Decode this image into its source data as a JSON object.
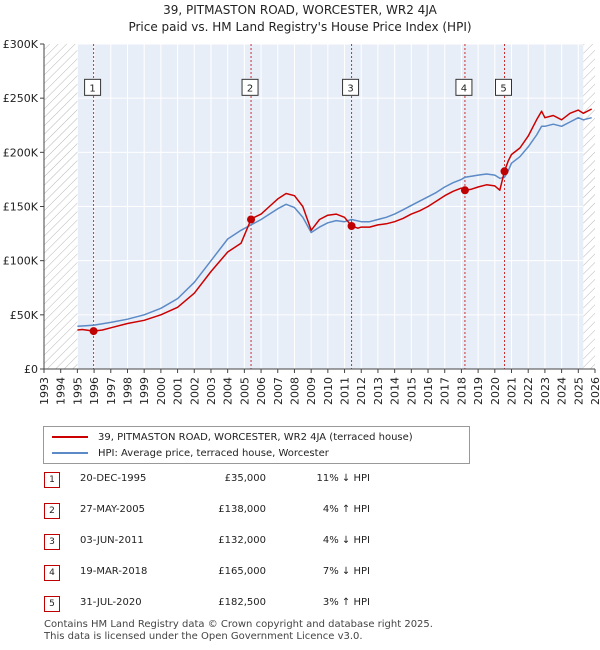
{
  "title_line1": "39, PITMASTON ROAD, WORCESTER, WR2 4JA",
  "title_line2": "Price paid vs. HM Land Registry's House Price Index (HPI)",
  "colors": {
    "property": "#cc0000",
    "hpi": "#5b8ac6",
    "hatch": "#bbbbbb",
    "marker": "#c00000"
  },
  "chart_data": {
    "type": "line",
    "xlim": [
      1993,
      2026
    ],
    "ylim": [
      0,
      300000
    ],
    "y_ticks": [
      0,
      50000,
      100000,
      150000,
      200000,
      250000,
      300000
    ],
    "y_tick_labels": [
      "£0",
      "£50K",
      "£100K",
      "£150K",
      "£200K",
      "£250K",
      "£300K"
    ],
    "x_ticks": [
      1993,
      1994,
      1995,
      1996,
      1997,
      1998,
      1999,
      2000,
      2001,
      2002,
      2003,
      2004,
      2005,
      2006,
      2007,
      2008,
      2009,
      2010,
      2011,
      2012,
      2013,
      2014,
      2015,
      2016,
      2017,
      2018,
      2019,
      2020,
      2021,
      2022,
      2023,
      2024,
      2025,
      2026
    ],
    "hatch_ranges": [
      [
        1993,
        1995.0
      ],
      [
        2025.3,
        2026
      ]
    ],
    "series": [
      {
        "name": "39, PITMASTON ROAD, WORCESTER, WR2 4JA (terraced house)",
        "color": "#cc0000",
        "points": [
          [
            1995.0,
            36000
          ],
          [
            1995.3,
            36500
          ],
          [
            1995.97,
            35000
          ],
          [
            1996.5,
            36000
          ],
          [
            1997,
            38000
          ],
          [
            1998,
            42000
          ],
          [
            1999,
            45000
          ],
          [
            2000,
            50000
          ],
          [
            2001,
            57000
          ],
          [
            2002,
            70000
          ],
          [
            2003,
            90000
          ],
          [
            2004,
            108000
          ],
          [
            2004.8,
            116000
          ],
          [
            2005.4,
            138000
          ],
          [
            2005.6,
            140000
          ],
          [
            2006,
            143000
          ],
          [
            2006.5,
            150000
          ],
          [
            2007,
            157000
          ],
          [
            2007.5,
            162000
          ],
          [
            2008,
            160000
          ],
          [
            2008.5,
            150000
          ],
          [
            2009,
            128000
          ],
          [
            2009.5,
            138000
          ],
          [
            2010,
            142000
          ],
          [
            2010.5,
            143000
          ],
          [
            2011.0,
            140000
          ],
          [
            2011.42,
            132000
          ],
          [
            2011.8,
            130000
          ],
          [
            2012,
            131000
          ],
          [
            2012.5,
            131000
          ],
          [
            2013,
            133000
          ],
          [
            2013.5,
            134000
          ],
          [
            2014,
            136000
          ],
          [
            2014.5,
            139000
          ],
          [
            2015,
            143000
          ],
          [
            2015.5,
            146000
          ],
          [
            2016,
            150000
          ],
          [
            2016.5,
            155000
          ],
          [
            2017,
            160000
          ],
          [
            2017.5,
            164000
          ],
          [
            2018.0,
            167000
          ],
          [
            2018.21,
            165000
          ],
          [
            2018.6,
            166000
          ],
          [
            2019,
            168000
          ],
          [
            2019.5,
            170000
          ],
          [
            2020.0,
            169000
          ],
          [
            2020.3,
            165000
          ],
          [
            2020.58,
            182500
          ],
          [
            2020.8,
            192000
          ],
          [
            2021,
            198000
          ],
          [
            2021.5,
            204000
          ],
          [
            2022,
            215000
          ],
          [
            2022.5,
            230000
          ],
          [
            2022.8,
            238000
          ],
          [
            2023,
            232000
          ],
          [
            2023.5,
            234000
          ],
          [
            2024,
            230000
          ],
          [
            2024.5,
            236000
          ],
          [
            2025,
            239000
          ],
          [
            2025.3,
            236000
          ],
          [
            2025.8,
            240000
          ]
        ]
      },
      {
        "name": "HPI: Average price, terraced house, Worcester",
        "color": "#5b8ac6",
        "points": [
          [
            1995.0,
            39500
          ],
          [
            1995.5,
            40000
          ],
          [
            1996,
            40500
          ],
          [
            1997,
            43000
          ],
          [
            1998,
            46000
          ],
          [
            1999,
            50000
          ],
          [
            2000,
            56000
          ],
          [
            2001,
            65000
          ],
          [
            2002,
            80000
          ],
          [
            2003,
            100000
          ],
          [
            2004,
            120000
          ],
          [
            2004.8,
            128000
          ],
          [
            2005.4,
            133000
          ],
          [
            2006,
            138000
          ],
          [
            2006.5,
            143000
          ],
          [
            2007,
            148000
          ],
          [
            2007.5,
            152000
          ],
          [
            2008,
            149000
          ],
          [
            2008.5,
            140000
          ],
          [
            2009,
            126000
          ],
          [
            2009.5,
            131000
          ],
          [
            2010,
            135000
          ],
          [
            2010.5,
            137000
          ],
          [
            2011,
            136000
          ],
          [
            2011.42,
            138000
          ],
          [
            2012,
            136000
          ],
          [
            2012.5,
            136000
          ],
          [
            2013,
            138000
          ],
          [
            2013.5,
            140000
          ],
          [
            2014,
            143000
          ],
          [
            2014.5,
            147000
          ],
          [
            2015,
            151000
          ],
          [
            2015.5,
            155000
          ],
          [
            2016,
            159000
          ],
          [
            2016.5,
            163000
          ],
          [
            2017,
            168000
          ],
          [
            2017.5,
            172000
          ],
          [
            2018.0,
            175000
          ],
          [
            2018.21,
            177000
          ],
          [
            2018.6,
            178000
          ],
          [
            2019,
            179000
          ],
          [
            2019.5,
            180000
          ],
          [
            2020.0,
            179000
          ],
          [
            2020.3,
            176000
          ],
          [
            2020.58,
            177000
          ],
          [
            2020.8,
            183000
          ],
          [
            2021,
            190000
          ],
          [
            2021.5,
            196000
          ],
          [
            2022,
            205000
          ],
          [
            2022.5,
            216000
          ],
          [
            2022.8,
            224000
          ],
          [
            2023,
            224000
          ],
          [
            2023.5,
            226000
          ],
          [
            2024,
            224000
          ],
          [
            2024.5,
            228000
          ],
          [
            2025,
            232000
          ],
          [
            2025.3,
            230000
          ],
          [
            2025.8,
            232000
          ]
        ]
      }
    ],
    "sales": [
      {
        "num": "1",
        "x": 1995.97,
        "y": 35000
      },
      {
        "num": "2",
        "x": 2005.4,
        "y": 138000
      },
      {
        "num": "3",
        "x": 2011.42,
        "y": 132000
      },
      {
        "num": "4",
        "x": 2018.21,
        "y": 165000
      },
      {
        "num": "5",
        "x": 2020.58,
        "y": 182500
      }
    ],
    "label_box_value": 260000
  },
  "legend": {
    "property_label": "39, PITMASTON ROAD, WORCESTER, WR2 4JA (terraced house)",
    "hpi_label": "HPI: Average price, terraced house, Worcester"
  },
  "transactions": [
    {
      "num": "1",
      "date": "20-DEC-1995",
      "price": "£35,000",
      "hpi": "11% ↓ HPI"
    },
    {
      "num": "2",
      "date": "27-MAY-2005",
      "price": "£138,000",
      "hpi": "4% ↑ HPI"
    },
    {
      "num": "3",
      "date": "03-JUN-2011",
      "price": "£132,000",
      "hpi": "4% ↓ HPI"
    },
    {
      "num": "4",
      "date": "19-MAR-2018",
      "price": "£165,000",
      "hpi": "7% ↓ HPI"
    },
    {
      "num": "5",
      "date": "31-JUL-2020",
      "price": "£182,500",
      "hpi": "3% ↑ HPI"
    }
  ],
  "footer_line1": "Contains HM Land Registry data © Crown copyright and database right 2025.",
  "footer_line2": "This data is licensed under the Open Government Licence v3.0."
}
